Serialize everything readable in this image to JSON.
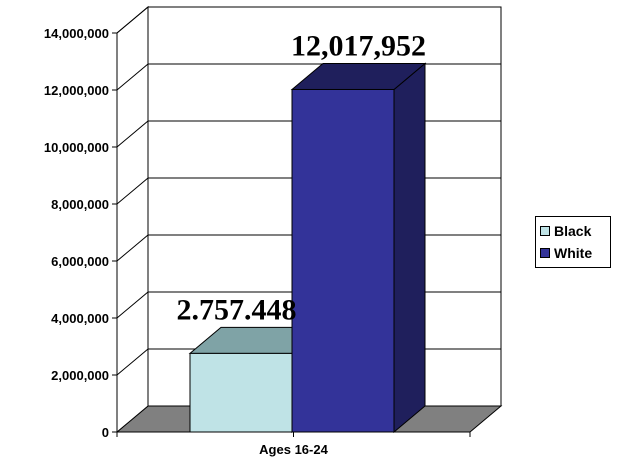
{
  "chart_data": {
    "type": "bar",
    "title": "",
    "categories": [
      "Ages 16-24"
    ],
    "series": [
      {
        "name": "Black",
        "values": [
          2757448
        ],
        "data_label": "2.757.448",
        "color": "#bfe3e6",
        "side_color": "#7fa3a6"
      },
      {
        "name": "White",
        "values": [
          12017952
        ],
        "data_label": "12,017,952",
        "color": "#333399",
        "side_color": "#1f1f5c"
      }
    ],
    "ylim": [
      0,
      14000000
    ],
    "yticks": [
      0,
      2000000,
      4000000,
      6000000,
      8000000,
      10000000,
      12000000,
      14000000
    ],
    "ytick_labels": [
      "0",
      "2,000,000",
      "4,000,000",
      "6,000,000",
      "8,000,000",
      "10,000,000",
      "12,000,000",
      "14,000,000"
    ],
    "xlabel": "",
    "ylabel": "",
    "grid": true,
    "legend_position": "right",
    "style": "3d-column",
    "floor_color": "#808080"
  }
}
